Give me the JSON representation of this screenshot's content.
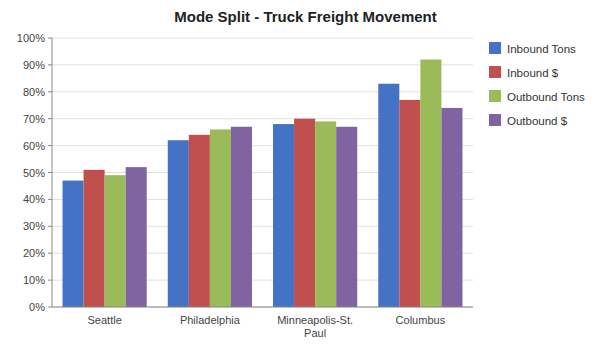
{
  "chart_data": {
    "type": "bar",
    "title": "Mode Split - Truck Freight Movement",
    "categories": [
      "Seattle",
      "Philadelphia",
      "Minneapolis-St.\nPaul",
      "Columbus"
    ],
    "series": [
      {
        "name": "Inbound Tons",
        "color": "#4472C4",
        "values": [
          0.47,
          0.62,
          0.68,
          0.83
        ]
      },
      {
        "name": "Inbound $",
        "color": "#C0504D",
        "values": [
          0.51,
          0.64,
          0.7,
          0.77
        ]
      },
      {
        "name": "Outbound Tons",
        "color": "#9BBB59",
        "values": [
          0.49,
          0.66,
          0.69,
          0.92
        ]
      },
      {
        "name": "Outbound $",
        "color": "#8064A2",
        "values": [
          0.52,
          0.67,
          0.67,
          0.74
        ]
      }
    ],
    "ylim": [
      0,
      1.0
    ],
    "yticks": [
      {
        "value": 0.0,
        "label": "0%"
      },
      {
        "value": 0.1,
        "label": "10%"
      },
      {
        "value": 0.2,
        "label": "20%"
      },
      {
        "value": 0.3,
        "label": "30%"
      },
      {
        "value": 0.4,
        "label": "40%"
      },
      {
        "value": 0.5,
        "label": "50%"
      },
      {
        "value": 0.6,
        "label": "60%"
      },
      {
        "value": 0.7,
        "label": "70%"
      },
      {
        "value": 0.8,
        "label": "80%"
      },
      {
        "value": 0.9,
        "label": "90%"
      },
      {
        "value": 1.0,
        "label": "100%"
      }
    ],
    "grid": true,
    "legend": "right"
  }
}
